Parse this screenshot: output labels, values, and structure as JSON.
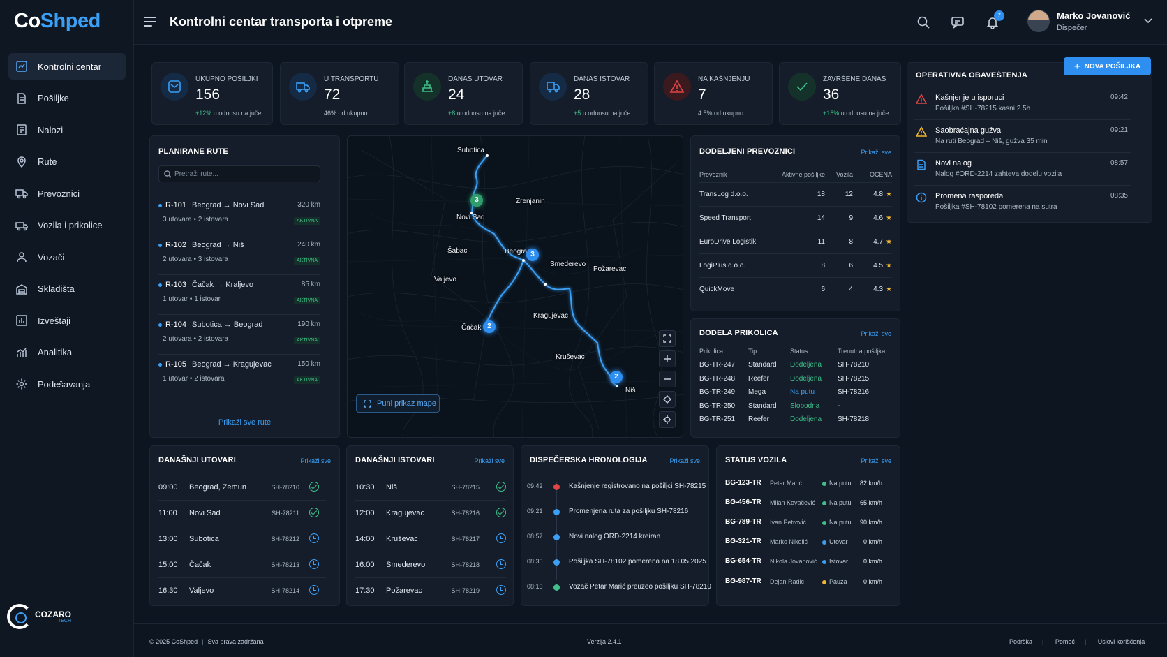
{
  "brand": {
    "name_part1": "Co",
    "name_part2": "Shped",
    "company_top": "COZARO",
    "company_bottom": "TECH"
  },
  "header": {
    "title": "Kontrolni centar transporta i otpreme",
    "notifications_count": "7",
    "user_name": "Marko Jovanović",
    "user_role": "Dispečer"
  },
  "sidebar": {
    "items": [
      {
        "label": "Kontrolni centar",
        "icon": "dashboard-icon"
      },
      {
        "label": "Pošiljke",
        "icon": "document-icon"
      },
      {
        "label": "Nalozi",
        "icon": "orders-icon"
      },
      {
        "label": "Rute",
        "icon": "location-pin-icon"
      },
      {
        "label": "Prevoznici",
        "icon": "truck-icon"
      },
      {
        "label": "Vozila i prikolice",
        "icon": "trailer-icon"
      },
      {
        "label": "Vozači",
        "icon": "person-icon"
      },
      {
        "label": "Skladišta",
        "icon": "warehouse-icon"
      },
      {
        "label": "Izveštaji",
        "icon": "report-icon"
      },
      {
        "label": "Analitika",
        "icon": "analytics-icon"
      },
      {
        "label": "Podešavanja",
        "icon": "gear-icon"
      }
    ]
  },
  "kpis": [
    {
      "label": "Ukupno pošiljki",
      "value": "156",
      "delta": "+12%",
      "sub": "u odnosu na juče",
      "icon": "envelope-icon",
      "color": "#3a9ff5"
    },
    {
      "label": "U transportu",
      "value": "72",
      "delta": "",
      "sub": "46% od ukupno",
      "icon": "truck-icon",
      "color": "#3a9ff5"
    },
    {
      "label": "Danas utovar",
      "value": "24",
      "delta": "+8",
      "sub": "u odnosu na juče",
      "icon": "loading-icon",
      "color": "#3fbf8a"
    },
    {
      "label": "Danas istovar",
      "value": "28",
      "delta": "+5",
      "sub": "u odnosu na juče",
      "icon": "unloading-truck-icon",
      "color": "#3a9ff5"
    },
    {
      "label": "Na kašnjenju",
      "value": "7",
      "delta": "",
      "sub": "4.5% od ukupno",
      "icon": "warning-icon",
      "color": "#e04545"
    },
    {
      "label": "Završene danas",
      "value": "36",
      "delta": "+15%",
      "sub": "u odnosu na juče",
      "icon": "check-icon",
      "color": "#3fbf8a"
    }
  ],
  "actions": {
    "new_shipment": "NOVA POŠILJKA"
  },
  "notifications": {
    "title": "Operativna obaveštenja",
    "items": [
      {
        "title": "Kašnjenje u isporuci",
        "detail": "Pošiljka #SH-78215 kasni 2.5h",
        "time": "09:42",
        "icon": "alert-triangle-icon",
        "color": "#e04545"
      },
      {
        "title": "Saobraćajna gužva",
        "detail": "Na ruti Beograd – Niš, gužva 35 min",
        "time": "09:21",
        "icon": "warning-icon",
        "color": "#f2b530"
      },
      {
        "title": "Novi nalog",
        "detail": "Nalog #ORD-2214 zahteva dodelu vozila",
        "time": "08:57",
        "icon": "document-icon",
        "color": "#3a9ff5"
      },
      {
        "title": "Promena rasporeda",
        "detail": "Pošiljka #SH-78102 pomerena na sutra",
        "time": "08:35",
        "icon": "info-icon",
        "color": "#3a9ff5"
      }
    ]
  },
  "routes": {
    "title": "Planirane rute",
    "search_placeholder": "Pretraži rute...",
    "show_all": "Prikaži sve rute",
    "items": [
      {
        "code": "R-101",
        "path": "Beograd → Novi Sad",
        "km": "320 km",
        "detail": "3 utovara • 2 istovara",
        "status": "AKTIVNA"
      },
      {
        "code": "R-102",
        "path": "Beograd → Niš",
        "km": "240 km",
        "detail": "2 utovara • 3 istovara",
        "status": "AKTIVNA"
      },
      {
        "code": "R-103",
        "path": "Čačak → Kraljevo",
        "km": "85 km",
        "detail": "1 utovar • 1 istovar",
        "status": "AKTIVNA"
      },
      {
        "code": "R-104",
        "path": "Subotica → Beograd",
        "km": "190 km",
        "detail": "2 utovara • 2 istovara",
        "status": "AKTIVNA"
      },
      {
        "code": "R-105",
        "path": "Beograd → Kragujevac",
        "km": "150 km",
        "detail": "1 utovar • 2 istovara",
        "status": "AKTIVNA"
      }
    ]
  },
  "map": {
    "full_view": "Puni prikaz mape",
    "cities": [
      "Subotica",
      "Zrenjanin",
      "Novi Sad",
      "Šabac",
      "Beograd",
      "Smederevo",
      "Požarevac",
      "Valjevo",
      "Kragujevac",
      "Čačak",
      "Kruševac",
      "Niš"
    ],
    "clusters": [
      "3",
      "3",
      "2",
      "2"
    ]
  },
  "carriers": {
    "title": "Dodeljeni prevoznici",
    "show_all": "Prikaži sve",
    "columns": [
      "Prevoznik",
      "Aktivne pošiljke",
      "Vozila",
      "OCENA"
    ],
    "rows": [
      [
        "TransLog d.o.o.",
        "18",
        "12",
        "4.8"
      ],
      [
        "Speed Transport",
        "14",
        "9",
        "4.6"
      ],
      [
        "EuroDrive Logistik",
        "11",
        "8",
        "4.7"
      ],
      [
        "LogiPlus d.o.o.",
        "8",
        "6",
        "4.5"
      ],
      [
        "QuickMove",
        "6",
        "4",
        "4.3"
      ]
    ]
  },
  "trailers": {
    "title": "Dodela prikolica",
    "show_all": "Prikaži sve",
    "columns": [
      "Prikolica",
      "Tip",
      "Status",
      "Trenutna pošiljka"
    ],
    "rows": [
      [
        "BG-TR-247",
        "Standard",
        "Dodeljena",
        "SH-78210"
      ],
      [
        "BG-TR-248",
        "Reefer",
        "Dodeljena",
        "SH-78215"
      ],
      [
        "BG-TR-249",
        "Mega",
        "Na putu",
        "SH-78216"
      ],
      [
        "BG-TR-250",
        "Standard",
        "Slobodna",
        "-"
      ],
      [
        "BG-TR-251",
        "Reefer",
        "Dodeljena",
        "SH-78218"
      ]
    ],
    "status_colors": {
      "Dodeljena": "#3fbf8a",
      "Na putu": "#3a9ff5",
      "Slobodna": "#3fbf8a"
    }
  },
  "loadings": {
    "title": "Današnji utovari",
    "show_all": "Prikaži sve",
    "rows": [
      {
        "time": "09:00",
        "place": "Beograd, Zemun",
        "id": "SH-78210",
        "state": "done"
      },
      {
        "time": "11:00",
        "place": "Novi Sad",
        "id": "SH-78211",
        "state": "done"
      },
      {
        "time": "13:00",
        "place": "Subotica",
        "id": "SH-78212",
        "state": "pend"
      },
      {
        "time": "15:00",
        "place": "Čačak",
        "id": "SH-78213",
        "state": "pend"
      },
      {
        "time": "16:30",
        "place": "Valjevo",
        "id": "SH-78214",
        "state": "pend"
      }
    ]
  },
  "unloadings": {
    "title": "Današnji istovari",
    "show_all": "Prikaži sve",
    "rows": [
      {
        "time": "10:30",
        "place": "Niš",
        "id": "SH-78215",
        "state": "done"
      },
      {
        "time": "12:00",
        "place": "Kragujevac",
        "id": "SH-78216",
        "state": "done"
      },
      {
        "time": "14:00",
        "place": "Kruševac",
        "id": "SH-78217",
        "state": "pend"
      },
      {
        "time": "16:00",
        "place": "Smederevo",
        "id": "SH-78218",
        "state": "pend"
      },
      {
        "time": "17:30",
        "place": "Požarevac",
        "id": "SH-78219",
        "state": "pend"
      }
    ]
  },
  "timeline": {
    "title": "Dispečerska hronologija",
    "show_all": "Prikaži sve",
    "items": [
      {
        "time": "09:42",
        "text": "Kašnjenje registrovano na pošiljci SH-78215",
        "color": "#e04545"
      },
      {
        "time": "09:21",
        "text": "Promenjena ruta za pošiljku SH-78216",
        "color": "#3a9ff5"
      },
      {
        "time": "08:57",
        "text": "Novi nalog ORD-2214 kreiran",
        "color": "#3a9ff5"
      },
      {
        "time": "08:35",
        "text": "Pošiljka SH-78102 pomerena na 18.05.2025",
        "color": "#3a9ff5"
      },
      {
        "time": "08:10",
        "text": "Vozač Petar Marić preuzeo pošiljku SH-78210",
        "color": "#3fbf8a"
      }
    ]
  },
  "vehicles": {
    "title": "Status vozila",
    "show_all": "Prikaži sve",
    "rows": [
      {
        "plate": "BG-123-TR",
        "driver": "Petar Marić",
        "status": "Na putu",
        "speed": "82 km/h",
        "color": "#3fbf8a"
      },
      {
        "plate": "BG-456-TR",
        "driver": "Milan Kovačević",
        "status": "Na putu",
        "speed": "65 km/h",
        "color": "#3fbf8a"
      },
      {
        "plate": "BG-789-TR",
        "driver": "Ivan Petrović",
        "status": "Na putu",
        "speed": "90 km/h",
        "color": "#3fbf8a"
      },
      {
        "plate": "BG-321-TR",
        "driver": "Marko Nikolić",
        "status": "Utovar",
        "speed": "0 km/h",
        "color": "#3a9ff5"
      },
      {
        "plate": "BG-654-TR",
        "driver": "Nikola Jovanović",
        "status": "Istovar",
        "speed": "0 km/h",
        "color": "#3a9ff5"
      },
      {
        "plate": "BG-987-TR",
        "driver": "Dejan Radić",
        "status": "Pauza",
        "speed": "0 km/h",
        "color": "#f2b530"
      }
    ]
  },
  "footer": {
    "copyright": "© 2025 CoShped",
    "rights": "Sva prava zadržana",
    "version": "Verzija 2.4.1",
    "links": [
      "Podrška",
      "Pomoć",
      "Uslovi korišćenja"
    ]
  }
}
